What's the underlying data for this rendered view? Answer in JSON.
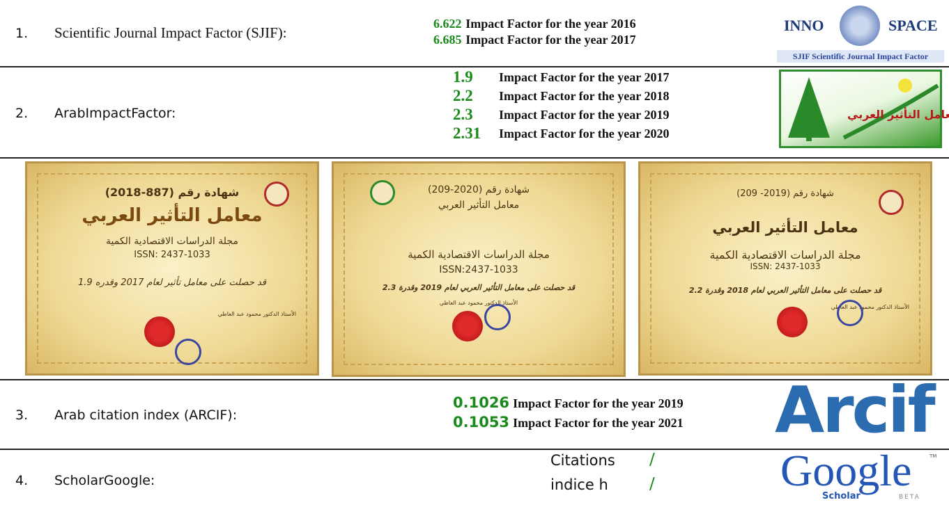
{
  "rows": [
    {
      "number": "1.",
      "name": "Scientific Journal Impact Factor (SJIF):",
      "factors": [
        {
          "value": "6.622",
          "label": "Impact Factor for the year 2016"
        },
        {
          "value": "6.685",
          "label": "Impact Factor for the year 2017"
        }
      ],
      "logo": {
        "left": "INNO",
        "right": "SPACE",
        "caption": "SJIF Scientific Journal Impact Factor"
      }
    },
    {
      "number": "2.",
      "name": "ArabImpactFactor:",
      "factors": [
        {
          "value": "1.9",
          "label": "Impact Factor for the year 2017"
        },
        {
          "value": "2.2",
          "label": "Impact Factor for the year 2018"
        },
        {
          "value": "2.3",
          "label": "Impact Factor for the year 2019"
        },
        {
          "value": "2.31",
          "label": "Impact Factor for the year 2020"
        }
      ],
      "logo": {
        "text": "معامل التأثير العربي"
      }
    },
    {
      "number": "3.",
      "name": "Arab citation index (ARCIF):",
      "factors": [
        {
          "value": "0.1026",
          "label": "Impact Factor for the year 2019"
        },
        {
          "value": "0.1053",
          "label": "Impact Factor for the year 2021"
        }
      ],
      "logo": {
        "text": "Arcif"
      }
    },
    {
      "number": "4.",
      "name": "ScholarGoogle:",
      "metrics": [
        {
          "label": "Citations",
          "value": "/"
        },
        {
          "label": "indice h",
          "value": "/"
        }
      ],
      "logo": {
        "text": "Google",
        "sub": "Scholar",
        "beta": "BETA",
        "tm": "TM"
      }
    }
  ],
  "certificates": [
    {
      "number": "شهادة رقم (887-2018)",
      "title": "معامل التأثير العربي",
      "journal": "مجلة الدراسات الاقتصادية الكمية",
      "issn": "ISSN: 2437-1033",
      "statement": "قد حصلت على معامل تأثير لعام 2017 وقدره 1.9",
      "signer": "الأستاذ الدكتور محمود عبد العاطي"
    },
    {
      "number": "شهادة رقم (2020-209)",
      "title": "معامل التأثير العربي",
      "journal": "مجلة الدراسات الاقتصادية الكمية",
      "issn": "ISSN:2437-1033",
      "statement": "قد حصلت على معامل التأثير العربي لعام 2019 وقدرة 2.3",
      "signer": "الأستاذ الدكتور محمود عبد العاطي"
    },
    {
      "number": "شهادة رقم (2019- 209)",
      "title": "معامل التأثير العربي",
      "journal": "مجلة الدراسات الاقتصادية الكمية",
      "issn": "ISSN: 2437-1033",
      "statement": "قد حصلت على معامل التأثير العربي لعام 2018 وقدرة 2.2",
      "signer": "الأستاذ الدكتور محمود عبد العاطي"
    }
  ]
}
